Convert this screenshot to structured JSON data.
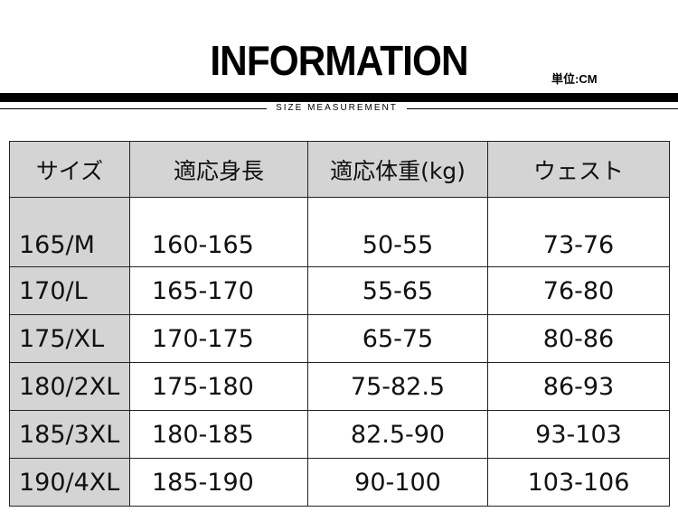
{
  "title": "INFORMATION",
  "unit": "単位:CM",
  "subtitle": "SIZE MEASUREMENT",
  "headers": [
    "サイズ",
    "適応身長",
    "適応体重(kg)",
    "ウェスト"
  ],
  "rows": [
    [
      "165/M",
      "160-165",
      "50-55",
      "73-76"
    ],
    [
      "170/L",
      "165-170",
      "55-65",
      "76-80"
    ],
    [
      "175/XL",
      "170-175",
      "65-75",
      "80-86"
    ],
    [
      "180/2XL",
      "175-180",
      "75-82.5",
      "86-93"
    ],
    [
      "185/3XL",
      "180-185",
      "82.5-90",
      "93-103"
    ],
    [
      "190/4XL",
      "185-190",
      "90-100",
      "103-106"
    ]
  ]
}
